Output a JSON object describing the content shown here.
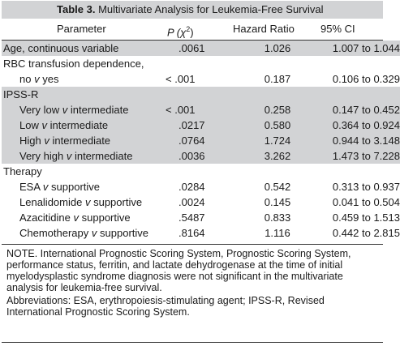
{
  "title": {
    "label": "Table",
    "number": " 3.",
    "text": " Multivariate Analysis for Leukemia-Free Survival"
  },
  "headers": {
    "parameter": "Parameter",
    "p_prefix": "P (",
    "p_chi": "χ",
    "p_sup": "2",
    "p_suffix": ")",
    "hazard_ratio": "Hazard Ratio",
    "ci": "95% CI"
  },
  "rows": [
    {
      "param": "Age, continuous variable",
      "p": ".0061",
      "hr": "1.026",
      "ci": "1.007 to 1.044",
      "shade": true,
      "indent": 0
    },
    {
      "param": "RBC transfusion dependence,",
      "p": "",
      "hr": "",
      "ci": "",
      "shade": false,
      "indent": 0
    },
    {
      "param": "no v yes",
      "p": "< .001",
      "hr": "0.187",
      "ci": "0.106 to 0.329",
      "shade": false,
      "indent": 1
    },
    {
      "param": "IPSS-R",
      "p": "",
      "hr": "",
      "ci": "",
      "shade": true,
      "indent": 0
    },
    {
      "param": "Very low v intermediate",
      "p": "< .001",
      "hr": "0.258",
      "ci": "0.147 to 0.452",
      "shade": true,
      "indent": 1
    },
    {
      "param": "Low v intermediate",
      "p": ".0217",
      "hr": "0.580",
      "ci": "0.364 to 0.924",
      "shade": true,
      "indent": 1
    },
    {
      "param": "High v intermediate",
      "p": ".0764",
      "hr": "1.724",
      "ci": "0.944 to 3.148",
      "shade": true,
      "indent": 1
    },
    {
      "param": "Very high v intermediate",
      "p": ".0036",
      "hr": "3.262",
      "ci": "1.473 to 7.228",
      "shade": true,
      "indent": 1
    },
    {
      "param": "Therapy",
      "p": "",
      "hr": "",
      "ci": "",
      "shade": false,
      "indent": 0
    },
    {
      "param": "ESA v supportive",
      "p": ".0284",
      "hr": "0.542",
      "ci": "0.313 to 0.937",
      "shade": false,
      "indent": 1
    },
    {
      "param": "Lenalidomide v supportive",
      "p": ".0024",
      "hr": "0.145",
      "ci": "0.041 to 0.504",
      "shade": false,
      "indent": 1
    },
    {
      "param": "Azacitidine v supportive",
      "p": ".5487",
      "hr": "0.833",
      "ci": "0.459 to 1.513",
      "shade": false,
      "indent": 1
    },
    {
      "param": "Chemotherapy v supportive",
      "p": ".8164",
      "hr": "1.116",
      "ci": "0.442 to 2.815",
      "shade": false,
      "indent": 1
    }
  ],
  "notes": {
    "note": "NOTE. International Prognostic Scoring System, Prognostic Scoring System, performance status, ferritin, and lactate dehydrogenase at the time of initial myelodysplastic syndrome diagnosis were not significant in the multivariate analysis for leukemia-free survival.",
    "abbreviations": "Abbreviations: ESA, erythropoiesis-stimulating agent; IPSS-R, Revised International Prognostic Scoring System."
  },
  "colors": {
    "shade": "#d2d3d5",
    "rule": "#333333"
  }
}
